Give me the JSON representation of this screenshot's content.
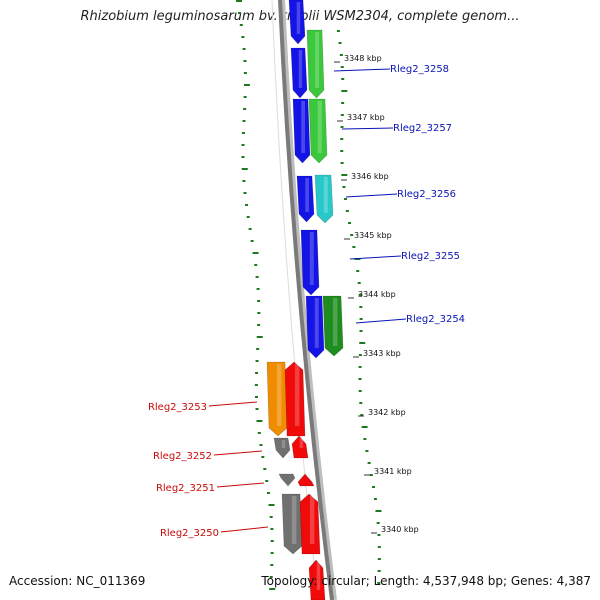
{
  "header": {
    "title": "Rhizobium leguminosarum bv. trifolii WSM2304, complete genom..."
  },
  "footer": {
    "accession": "Accession: NC_011369",
    "summary": "Topology: circular; Length: 4,537,948 bp; Genes: 4,387"
  },
  "map": {
    "ticks": [
      "3348 kbp",
      "3347 kbp",
      "3346 kbp",
      "3345 kbp",
      "3344 kbp",
      "3343 kbp",
      "3342 kbp",
      "3341 kbp",
      "3340 kbp"
    ],
    "gene_labels_right": [
      "Rleg2_3258",
      "Rleg2_3257",
      "Rleg2_3256",
      "Rleg2_3255",
      "Rleg2_3254"
    ],
    "gene_labels_left": [
      "Rleg2_3253",
      "Rleg2_3252",
      "Rleg2_3251",
      "Rleg2_3250"
    ],
    "colors": {
      "blue": "#1414e6",
      "green": "#3cc83c",
      "cyan": "#28c8c8",
      "dark_green": "#1e8c1e",
      "orange": "#f08c00",
      "red": "#f00a0a",
      "gray": "#707070",
      "label_blue": "#0a14b4",
      "label_red": "#c80a0a"
    }
  }
}
